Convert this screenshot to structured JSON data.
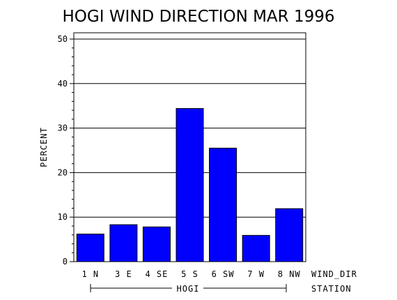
{
  "chart_data": {
    "type": "bar",
    "title": "HOGI WIND DIRECTION MAR 1996",
    "ylabel": "PERCENT",
    "xlabel": "WIND_DIR",
    "group_axis_label": "STATION",
    "group_label": "HOGI",
    "categories": [
      "1 N",
      "3 E",
      "4 SE",
      "5 S",
      "6 SW",
      "7 W",
      "8 NW"
    ],
    "values": [
      6.2,
      8.3,
      7.8,
      34.4,
      25.5,
      5.9,
      11.9
    ],
    "ylim": [
      0,
      50
    ],
    "yticks": [
      0,
      10,
      20,
      30,
      40,
      50
    ],
    "grid": true,
    "bar_color": "#0000ff"
  }
}
